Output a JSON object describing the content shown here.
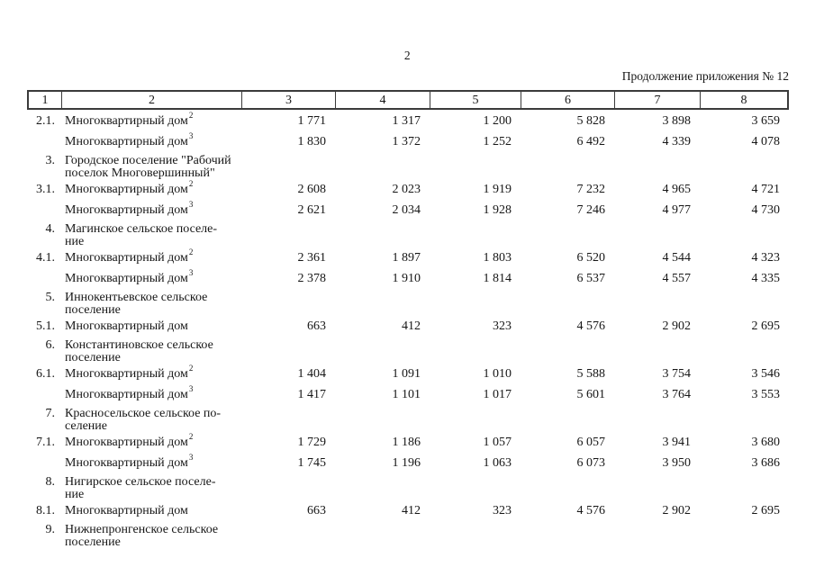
{
  "page": {
    "number": "2",
    "continuation": "Продолжение приложения № 12"
  },
  "table": {
    "header_cols": [
      "1",
      "2",
      "3",
      "4",
      "5",
      "6",
      "7",
      "8"
    ],
    "rows": [
      {
        "type": "data",
        "num": "2.1.",
        "label": "Многоквартирный дом",
        "sup": "2",
        "values": [
          "1 771",
          "1 317",
          "1 200",
          "5 828",
          "3 898",
          "3 659"
        ]
      },
      {
        "type": "data",
        "num": "",
        "label": "Многоквартирный дом",
        "sup": "3",
        "values": [
          "1 830",
          "1 372",
          "1 252",
          "6 492",
          "4 339",
          "4 078"
        ]
      },
      {
        "type": "section",
        "num": "3.",
        "label_lines": [
          "Городское поселение \"Рабочий",
          "поселок Многовершинный\""
        ]
      },
      {
        "type": "data",
        "num": "3.1.",
        "label": "Многоквартирный дом",
        "sup": "2",
        "values": [
          "2 608",
          "2 023",
          "1 919",
          "7 232",
          "4 965",
          "4 721"
        ]
      },
      {
        "type": "data",
        "num": "",
        "label": "Многоквартирный дом",
        "sup": "3",
        "values": [
          "2 621",
          "2 034",
          "1 928",
          "7 246",
          "4 977",
          "4 730"
        ]
      },
      {
        "type": "section",
        "num": "4.",
        "label_lines": [
          "Магинское сельское поселе-",
          "ние"
        ]
      },
      {
        "type": "data",
        "num": "4.1.",
        "label": "Многоквартирный дом",
        "sup": "2",
        "values": [
          "2 361",
          "1 897",
          "1 803",
          "6 520",
          "4 544",
          "4 323"
        ]
      },
      {
        "type": "data",
        "num": "",
        "label": "Многоквартирный дом",
        "sup": "3",
        "values": [
          "2 378",
          "1 910",
          "1 814",
          "6 537",
          "4 557",
          "4 335"
        ]
      },
      {
        "type": "section",
        "num": "5.",
        "label_lines": [
          "Иннокентьевское сельское",
          "поселение"
        ]
      },
      {
        "type": "data",
        "num": "5.1.",
        "label": "Многоквартирный дом",
        "sup": "",
        "values": [
          "663",
          "412",
          "323",
          "4 576",
          "2 902",
          "2 695"
        ]
      },
      {
        "type": "section",
        "num": "6.",
        "label_lines": [
          "Константиновское сельское",
          "поселение"
        ]
      },
      {
        "type": "data",
        "num": "6.1.",
        "label": "Многоквартирный дом",
        "sup": "2",
        "values": [
          "1 404",
          "1 091",
          "1 010",
          "5 588",
          "3 754",
          "3 546"
        ]
      },
      {
        "type": "data",
        "num": "",
        "label": "Многоквартирный дом",
        "sup": "3",
        "values": [
          "1 417",
          "1 101",
          "1 017",
          "5 601",
          "3 764",
          "3 553"
        ]
      },
      {
        "type": "section",
        "num": "7.",
        "label_lines": [
          "Красносельское сельское по-",
          "селение"
        ]
      },
      {
        "type": "data",
        "num": "7.1.",
        "label": "Многоквартирный дом",
        "sup": "2",
        "values": [
          "1 729",
          "1 186",
          "1 057",
          "6 057",
          "3 941",
          "3 680"
        ]
      },
      {
        "type": "data",
        "num": "",
        "label": "Многоквартирный дом",
        "sup": "3",
        "values": [
          "1 745",
          "1 196",
          "1 063",
          "6 073",
          "3 950",
          "3 686"
        ]
      },
      {
        "type": "section",
        "num": "8.",
        "label_lines": [
          "Нигирское сельское поселе-",
          "ние"
        ]
      },
      {
        "type": "data",
        "num": "8.1.",
        "label": "Многоквартирный дом",
        "sup": "",
        "values": [
          "663",
          "412",
          "323",
          "4 576",
          "2 902",
          "2 695"
        ]
      },
      {
        "type": "section",
        "num": "9.",
        "label_lines": [
          "Нижнепронгенское сельское",
          "поселение"
        ]
      }
    ]
  }
}
